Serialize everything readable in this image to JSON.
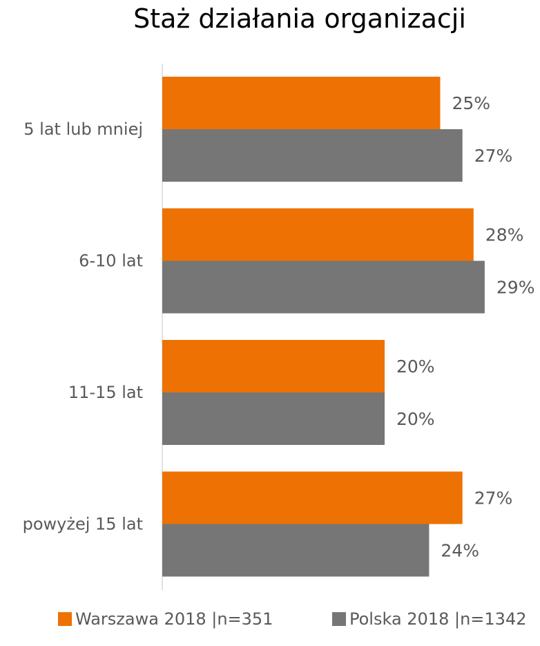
{
  "chart_data": {
    "type": "bar",
    "orientation": "horizontal",
    "title": "Staż działania organizacji",
    "categories": [
      "5 lat lub mniej",
      "6-10 lat",
      "11-15 lat",
      "powyżej 15 lat"
    ],
    "series": [
      {
        "name": "Warszawa 2018 |n=351",
        "color": "#ED7203",
        "values": [
          25,
          28,
          20,
          27
        ],
        "labels": [
          "25%",
          "28%",
          "20%",
          "27%"
        ]
      },
      {
        "name": "Polska 2018 |n=1342",
        "color": "#767676",
        "values": [
          27,
          29,
          20,
          24
        ],
        "labels": [
          "27%",
          "29%",
          "20%",
          "24%"
        ]
      }
    ],
    "xlim": [
      0,
      30
    ],
    "unit": "%",
    "grid": false,
    "legend": "bottom"
  }
}
